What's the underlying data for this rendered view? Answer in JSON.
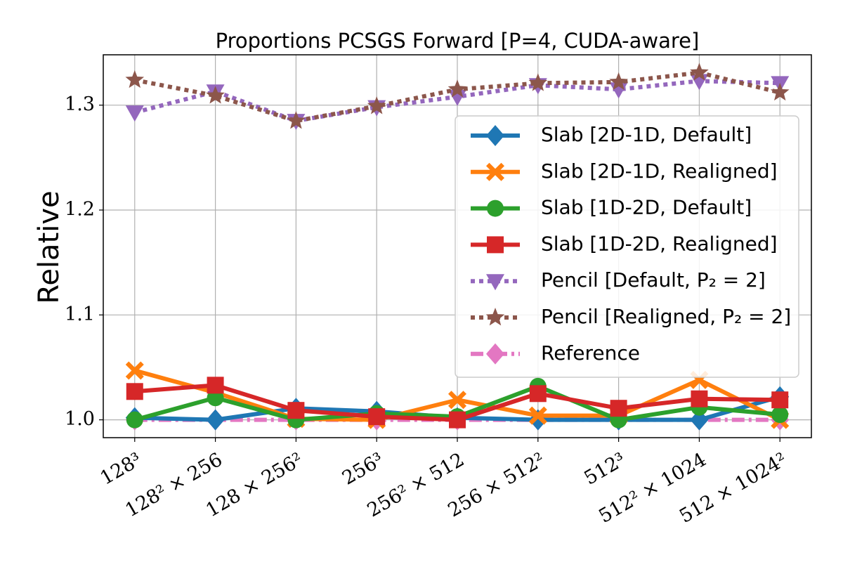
{
  "chart_data": {
    "type": "line",
    "title": "Proportions PCSGS Forward [P=4, CUDA-aware]",
    "y_label": "Relative",
    "categories": [
      "128³",
      "128² × 256",
      "128 × 256²",
      "256³",
      "256² × 512",
      "256 × 512²",
      "512³",
      "512² × 1024",
      "512 × 1024²"
    ],
    "ylim": [
      0.983,
      1.348
    ],
    "yticks": [
      {
        "value": 1,
        "label": "1.0"
      },
      1.1,
      1.2,
      1.3
    ],
    "grid": true,
    "legend": "upper right",
    "series": [
      {
        "name": "Reference",
        "color": "#e377c2",
        "marker": "diamond",
        "linestyle": "dashdot",
        "values": [
          1,
          1,
          1,
          1,
          1,
          1,
          1,
          1,
          1
        ]
      },
      {
        "name": "Slab [2D-1D, Default]",
        "color": "#1f77b4",
        "marker": "diamond",
        "linestyle": "solid",
        "values": [
          1.002,
          1.0,
          1.011,
          1.008,
          1.002,
          1.0,
          1.0,
          1.0,
          1.022
        ]
      },
      {
        "name": "Slab [2D-1D, Realigned]",
        "color": "#ff7f0e",
        "marker": "x",
        "linestyle": "solid",
        "values": [
          1.047,
          1.026,
          1.001,
          1.0,
          1.019,
          1.004,
          1.004,
          1.038,
          1.0
        ]
      },
      {
        "name": "Slab [1D-2D, Default]",
        "color": "#2ca02c",
        "marker": "circle",
        "linestyle": "solid",
        "values": [
          1.0,
          1.021,
          1.0,
          1.006,
          1.003,
          1.032,
          1.0,
          1.012,
          1.005
        ]
      },
      {
        "name": "Slab [1D-2D, Realigned]",
        "color": "#d62728",
        "marker": "square",
        "linestyle": "solid",
        "values": [
          1.027,
          1.033,
          1.009,
          1.003,
          1.0,
          1.025,
          1.011,
          1.02,
          1.019
        ]
      },
      {
        "name": "Pencil [Default, P₂ = 2]",
        "color": "#9467bd",
        "marker": "triangle-down",
        "linestyle": "dotted",
        "values": [
          1.293,
          1.313,
          1.285,
          1.298,
          1.308,
          1.319,
          1.315,
          1.323,
          1.321
        ]
      },
      {
        "name": "Pencil [Realigned, P₂ = 2]",
        "color": "#8c564b",
        "marker": "star",
        "linestyle": "dotted",
        "values": [
          1.324,
          1.309,
          1.285,
          1.299,
          1.315,
          1.321,
          1.322,
          1.331,
          1.312
        ]
      }
    ]
  }
}
